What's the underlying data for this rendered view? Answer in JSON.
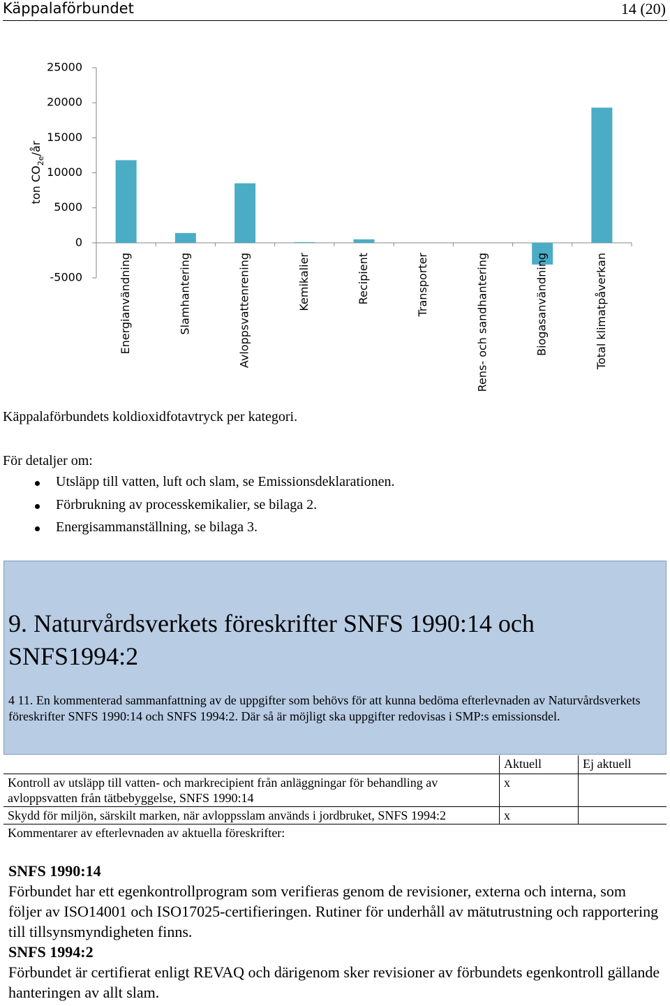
{
  "header": {
    "organization": "Käppalaförbundet",
    "page": "14 (20)"
  },
  "chart_data": {
    "type": "bar",
    "ylabel": {
      "prefix": "ton CO",
      "subscript": "2e",
      "suffix": "/år"
    },
    "categories": [
      "Energianvändning",
      "Slamhantering",
      "Avloppsvattenrening",
      "Kemikalier",
      "Recipient",
      "Transporter",
      "Rens- och sandhantering",
      "Biogasanvändning",
      "Total klimatpåverkan"
    ],
    "values": [
      11800,
      1400,
      8500,
      100,
      500,
      0,
      0,
      -3100,
      19300
    ],
    "color": "#4bacc6",
    "ylim": [
      -5000,
      25000
    ],
    "yticks": [
      -5000,
      0,
      5000,
      10000,
      15000,
      20000,
      25000
    ]
  },
  "caption": "Käppalaförbundets koldioxidfotavtryck per kategori.",
  "details": {
    "intro": "För detaljer om:",
    "items": [
      "Utsläpp till vatten, luft och slam, se Emissionsdeklarationen.",
      "Förbrukning av processkemikalier, se bilaga 2.",
      "Energisammanställning, se bilaga 3."
    ]
  },
  "section": {
    "title_lines": [
      "9. Naturvårdsverkets föreskrifter SNFS 1990:14 och",
      "SNFS1994:2"
    ],
    "paragraph": "4 11. En kommenterad sammanfattning av de uppgifter som behövs för att kunna bedöma efterlevnaden av Naturvårdsverkets föreskrifter SNFS 1990:14 och SNFS 1994:2. Där så är möjligt ska uppgifter redovisas i SMP:s emissionsdel."
  },
  "table": {
    "headers": [
      "Aktuell",
      "Ej aktuell"
    ],
    "rows": [
      {
        "label": "Kontroll av utsläpp till vatten- och markrecipient från anläggningar för behandling av avloppsvatten från tätbebyggelse, SNFS 1990:14",
        "aktuell": "x"
      },
      {
        "label": "Skydd för miljön, särskilt marken, när avloppsslam används i jordbruket, SNFS 1994:2",
        "aktuell": "x"
      }
    ]
  },
  "comments": {
    "intro": "Kommentarer av efterlevnaden av aktuella föreskrifter:",
    "blocks": [
      {
        "heading": "SNFS 1990:14",
        "text": "Förbundet har ett egenkontrollprogram som verifieras genom de revisioner, externa och interna, som följer av ISO14001 och ISO17025-certifieringen. Rutiner för underhåll av mätutrustning och rapportering till tillsynsmyndigheten finns."
      },
      {
        "heading": "SNFS 1994:2",
        "text": "Förbundet är certifierat enligt REVAQ och därigenom sker revisioner av förbundets egenkontroll gällande hanteringen av allt slam."
      }
    ]
  }
}
